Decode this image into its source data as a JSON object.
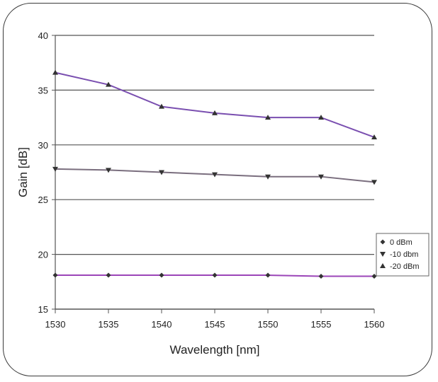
{
  "chart_data": {
    "type": "line",
    "title": "",
    "xlabel": "Wavelength [nm]",
    "ylabel": "Gain [dB]",
    "x": [
      1530,
      1535,
      1540,
      1545,
      1550,
      1555,
      1560
    ],
    "xlim": [
      1530,
      1560
    ],
    "ylim": [
      15,
      40
    ],
    "yticks": [
      15,
      20,
      25,
      30,
      35,
      40
    ],
    "grid": "horizontal",
    "legend_position": "right",
    "series": [
      {
        "name": "0 dBm",
        "marker": "diamond",
        "color": "#9b45b8",
        "values": [
          18.1,
          18.1,
          18.1,
          18.1,
          18.1,
          18.0,
          18.0
        ]
      },
      {
        "name": "-10 dbm",
        "marker": "triangle-down",
        "color": "#7a6e7e",
        "values": [
          27.8,
          27.7,
          27.5,
          27.3,
          27.1,
          27.1,
          26.6
        ]
      },
      {
        "name": "-20 dBm",
        "marker": "triangle-up",
        "color": "#7a4fb0",
        "values": [
          36.6,
          35.5,
          33.5,
          32.9,
          32.5,
          32.5,
          30.7
        ]
      }
    ]
  }
}
